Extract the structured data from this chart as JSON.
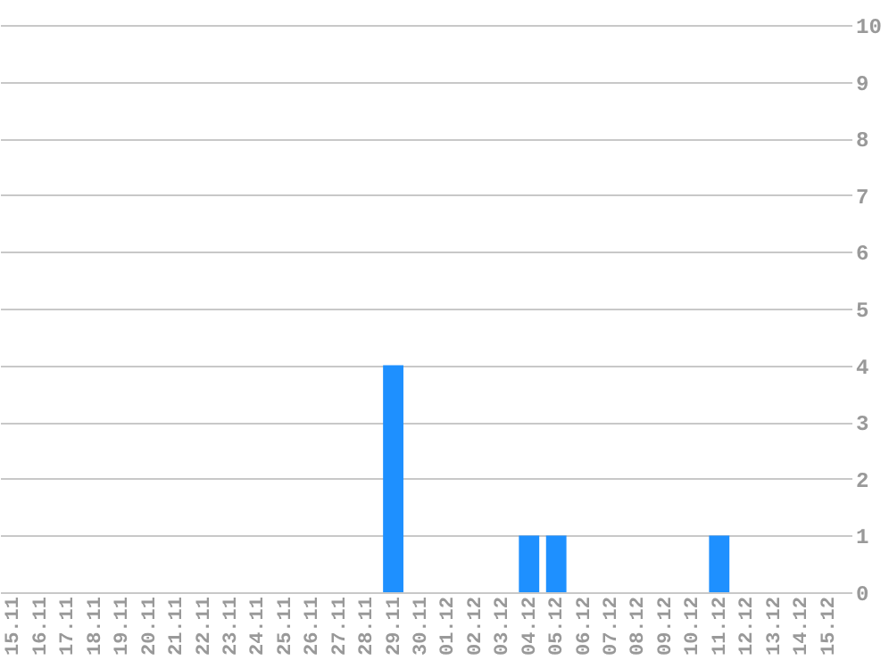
{
  "chart_data": {
    "type": "bar",
    "categories": [
      "15.11",
      "16.11",
      "17.11",
      "18.11",
      "19.11",
      "20.11",
      "21.11",
      "22.11",
      "23.11",
      "24.11",
      "25.11",
      "26.11",
      "27.11",
      "28.11",
      "29.11",
      "30.11",
      "01.12",
      "02.12",
      "03.12",
      "04.12",
      "05.12",
      "06.12",
      "07.12",
      "08.12",
      "09.12",
      "10.12",
      "11.12",
      "12.12",
      "13.12",
      "14.12",
      "15.12"
    ],
    "values": [
      0,
      0,
      0,
      0,
      0,
      0,
      0,
      0,
      0,
      0,
      0,
      0,
      0,
      0,
      4,
      0,
      0,
      0,
      0,
      1,
      1,
      0,
      0,
      0,
      0,
      0,
      1,
      0,
      0,
      0,
      0
    ],
    "color": "#1e90ff",
    "ylim": [
      0,
      10
    ],
    "yticks": [
      0,
      1,
      2,
      3,
      4,
      5,
      6,
      7,
      8,
      9,
      10
    ],
    "grid": "y"
  }
}
